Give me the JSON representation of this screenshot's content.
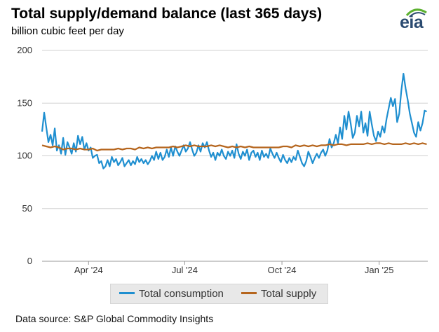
{
  "chart_data": {
    "type": "line",
    "title": "Total supply/demand balance (last 365 days)",
    "subtitle": "billion cubic feet per day",
    "xlabel": "",
    "ylabel": "",
    "ylim": [
      0,
      200
    ],
    "yticks": [
      0,
      50,
      100,
      150,
      200
    ],
    "x_range": [
      0,
      365
    ],
    "xticks": [
      {
        "label": "Apr '24",
        "day": 44
      },
      {
        "label": "Jul '24",
        "day": 135
      },
      {
        "label": "Oct '24",
        "day": 227
      },
      {
        "label": "Jan '25",
        "day": 319
      }
    ],
    "series": [
      {
        "name": "Total consumption",
        "color": "#1f8fd0",
        "points": [
          [
            0,
            123
          ],
          [
            2,
            141
          ],
          [
            4,
            127
          ],
          [
            6,
            113
          ],
          [
            8,
            120
          ],
          [
            10,
            110
          ],
          [
            12,
            126
          ],
          [
            14,
            105
          ],
          [
            16,
            110
          ],
          [
            18,
            102
          ],
          [
            20,
            117
          ],
          [
            22,
            101
          ],
          [
            24,
            113
          ],
          [
            26,
            108
          ],
          [
            28,
            102
          ],
          [
            30,
            112
          ],
          [
            32,
            104
          ],
          [
            34,
            119
          ],
          [
            36,
            111
          ],
          [
            38,
            118
          ],
          [
            40,
            106
          ],
          [
            42,
            112
          ],
          [
            44,
            105
          ],
          [
            46,
            108
          ],
          [
            48,
            98
          ],
          [
            50,
            100
          ],
          [
            52,
            101
          ],
          [
            54,
            93
          ],
          [
            56,
            95
          ],
          [
            58,
            88
          ],
          [
            60,
            90
          ],
          [
            62,
            96
          ],
          [
            64,
            90
          ],
          [
            66,
            99
          ],
          [
            68,
            94
          ],
          [
            70,
            97
          ],
          [
            72,
            91
          ],
          [
            74,
            94
          ],
          [
            76,
            98
          ],
          [
            78,
            90
          ],
          [
            80,
            93
          ],
          [
            82,
            96
          ],
          [
            84,
            91
          ],
          [
            86,
            95
          ],
          [
            88,
            92
          ],
          [
            90,
            99
          ],
          [
            92,
            94
          ],
          [
            94,
            97
          ],
          [
            96,
            93
          ],
          [
            98,
            96
          ],
          [
            100,
            92
          ],
          [
            102,
            95
          ],
          [
            104,
            100
          ],
          [
            106,
            96
          ],
          [
            108,
            104
          ],
          [
            110,
            97
          ],
          [
            112,
            103
          ],
          [
            114,
            96
          ],
          [
            116,
            99
          ],
          [
            118,
            106
          ],
          [
            120,
            99
          ],
          [
            122,
            108
          ],
          [
            124,
            100
          ],
          [
            126,
            109
          ],
          [
            128,
            104
          ],
          [
            130,
            100
          ],
          [
            132,
            105
          ],
          [
            134,
            110
          ],
          [
            136,
            104
          ],
          [
            138,
            107
          ],
          [
            140,
            113
          ],
          [
            142,
            106
          ],
          [
            144,
            100
          ],
          [
            146,
            103
          ],
          [
            148,
            110
          ],
          [
            150,
            104
          ],
          [
            152,
            112
          ],
          [
            154,
            108
          ],
          [
            156,
            113
          ],
          [
            158,
            105
          ],
          [
            160,
            99
          ],
          [
            162,
            103
          ],
          [
            164,
            96
          ],
          [
            166,
            103
          ],
          [
            168,
            100
          ],
          [
            170,
            106
          ],
          [
            172,
            100
          ],
          [
            174,
            97
          ],
          [
            176,
            104
          ],
          [
            178,
            100
          ],
          [
            180,
            105
          ],
          [
            182,
            98
          ],
          [
            184,
            111
          ],
          [
            186,
            102
          ],
          [
            188,
            97
          ],
          [
            190,
            104
          ],
          [
            192,
            100
          ],
          [
            194,
            106
          ],
          [
            196,
            96
          ],
          [
            198,
            103
          ],
          [
            200,
            105
          ],
          [
            202,
            99
          ],
          [
            204,
            103
          ],
          [
            206,
            96
          ],
          [
            208,
            105
          ],
          [
            210,
            99
          ],
          [
            212,
            102
          ],
          [
            214,
            98
          ],
          [
            216,
            107
          ],
          [
            218,
            102
          ],
          [
            220,
            98
          ],
          [
            222,
            103
          ],
          [
            224,
            98
          ],
          [
            226,
            94
          ],
          [
            228,
            101
          ],
          [
            230,
            96
          ],
          [
            232,
            93
          ],
          [
            234,
            98
          ],
          [
            236,
            94
          ],
          [
            238,
            99
          ],
          [
            240,
            96
          ],
          [
            242,
            105
          ],
          [
            244,
            99
          ],
          [
            246,
            93
          ],
          [
            248,
            90
          ],
          [
            250,
            95
          ],
          [
            252,
            104
          ],
          [
            254,
            99
          ],
          [
            256,
            93
          ],
          [
            258,
            98
          ],
          [
            260,
            102
          ],
          [
            262,
            98
          ],
          [
            264,
            103
          ],
          [
            266,
            106
          ],
          [
            268,
            100
          ],
          [
            270,
            105
          ],
          [
            272,
            116
          ],
          [
            274,
            108
          ],
          [
            276,
            112
          ],
          [
            278,
            120
          ],
          [
            280,
            112
          ],
          [
            282,
            127
          ],
          [
            284,
            116
          ],
          [
            286,
            138
          ],
          [
            288,
            125
          ],
          [
            290,
            142
          ],
          [
            292,
            131
          ],
          [
            294,
            117
          ],
          [
            296,
            122
          ],
          [
            298,
            138
          ],
          [
            300,
            128
          ],
          [
            302,
            142
          ],
          [
            304,
            122
          ],
          [
            306,
            131
          ],
          [
            308,
            119
          ],
          [
            310,
            142
          ],
          [
            312,
            130
          ],
          [
            314,
            119
          ],
          [
            316,
            114
          ],
          [
            318,
            123
          ],
          [
            320,
            118
          ],
          [
            322,
            128
          ],
          [
            324,
            122
          ],
          [
            326,
            135
          ],
          [
            328,
            145
          ],
          [
            330,
            155
          ],
          [
            332,
            147
          ],
          [
            334,
            154
          ],
          [
            336,
            132
          ],
          [
            338,
            140
          ],
          [
            340,
            162
          ],
          [
            342,
            178
          ],
          [
            344,
            164
          ],
          [
            346,
            153
          ],
          [
            348,
            140
          ],
          [
            350,
            131
          ],
          [
            352,
            122
          ],
          [
            354,
            118
          ],
          [
            356,
            132
          ],
          [
            358,
            124
          ],
          [
            360,
            131
          ],
          [
            362,
            143
          ],
          [
            364,
            142
          ]
        ]
      },
      {
        "name": "Total supply",
        "color": "#b5651d",
        "points": [
          [
            0,
            110
          ],
          [
            4,
            109
          ],
          [
            8,
            108
          ],
          [
            12,
            109
          ],
          [
            16,
            108
          ],
          [
            20,
            106
          ],
          [
            24,
            107
          ],
          [
            28,
            107
          ],
          [
            32,
            106
          ],
          [
            36,
            107
          ],
          [
            40,
            106
          ],
          [
            44,
            106
          ],
          [
            48,
            107
          ],
          [
            52,
            105
          ],
          [
            56,
            106
          ],
          [
            60,
            106
          ],
          [
            64,
            106
          ],
          [
            68,
            106
          ],
          [
            72,
            107
          ],
          [
            76,
            106
          ],
          [
            80,
            107
          ],
          [
            84,
            107
          ],
          [
            88,
            106
          ],
          [
            92,
            108
          ],
          [
            96,
            107
          ],
          [
            100,
            108
          ],
          [
            104,
            107
          ],
          [
            108,
            108
          ],
          [
            112,
            108
          ],
          [
            116,
            108
          ],
          [
            120,
            108
          ],
          [
            124,
            109
          ],
          [
            128,
            108
          ],
          [
            132,
            109
          ],
          [
            136,
            110
          ],
          [
            140,
            109
          ],
          [
            144,
            110
          ],
          [
            148,
            109
          ],
          [
            152,
            109
          ],
          [
            156,
            109
          ],
          [
            160,
            110
          ],
          [
            164,
            109
          ],
          [
            168,
            110
          ],
          [
            172,
            109
          ],
          [
            176,
            108
          ],
          [
            180,
            109
          ],
          [
            184,
            108
          ],
          [
            188,
            109
          ],
          [
            192,
            108
          ],
          [
            196,
            109
          ],
          [
            200,
            108
          ],
          [
            204,
            108
          ],
          [
            208,
            108
          ],
          [
            212,
            108
          ],
          [
            216,
            108
          ],
          [
            220,
            108
          ],
          [
            224,
            108
          ],
          [
            228,
            109
          ],
          [
            232,
            109
          ],
          [
            236,
            108
          ],
          [
            240,
            110
          ],
          [
            244,
            109
          ],
          [
            248,
            110
          ],
          [
            252,
            109
          ],
          [
            256,
            110
          ],
          [
            260,
            109
          ],
          [
            264,
            110
          ],
          [
            268,
            110
          ],
          [
            272,
            111
          ],
          [
            276,
            110
          ],
          [
            280,
            111
          ],
          [
            284,
            111
          ],
          [
            288,
            110
          ],
          [
            292,
            111
          ],
          [
            296,
            111
          ],
          [
            300,
            111
          ],
          [
            304,
            111
          ],
          [
            308,
            112
          ],
          [
            312,
            111
          ],
          [
            316,
            112
          ],
          [
            320,
            112
          ],
          [
            324,
            111
          ],
          [
            328,
            112
          ],
          [
            332,
            111
          ],
          [
            336,
            111
          ],
          [
            340,
            111
          ],
          [
            344,
            112
          ],
          [
            348,
            111
          ],
          [
            352,
            112
          ],
          [
            356,
            111
          ],
          [
            360,
            112
          ],
          [
            364,
            111
          ]
        ]
      }
    ],
    "legend": [
      "Total consumption",
      "Total supply"
    ],
    "legend_position": "bottom-center"
  },
  "logo_text": "eia",
  "source": "Data source: S&P Global Commodity Insights",
  "colors": {
    "logo": "#2a4a70",
    "logo_accent": "#5cb130",
    "grid": "#d0d0d0",
    "axis": "#999999"
  }
}
